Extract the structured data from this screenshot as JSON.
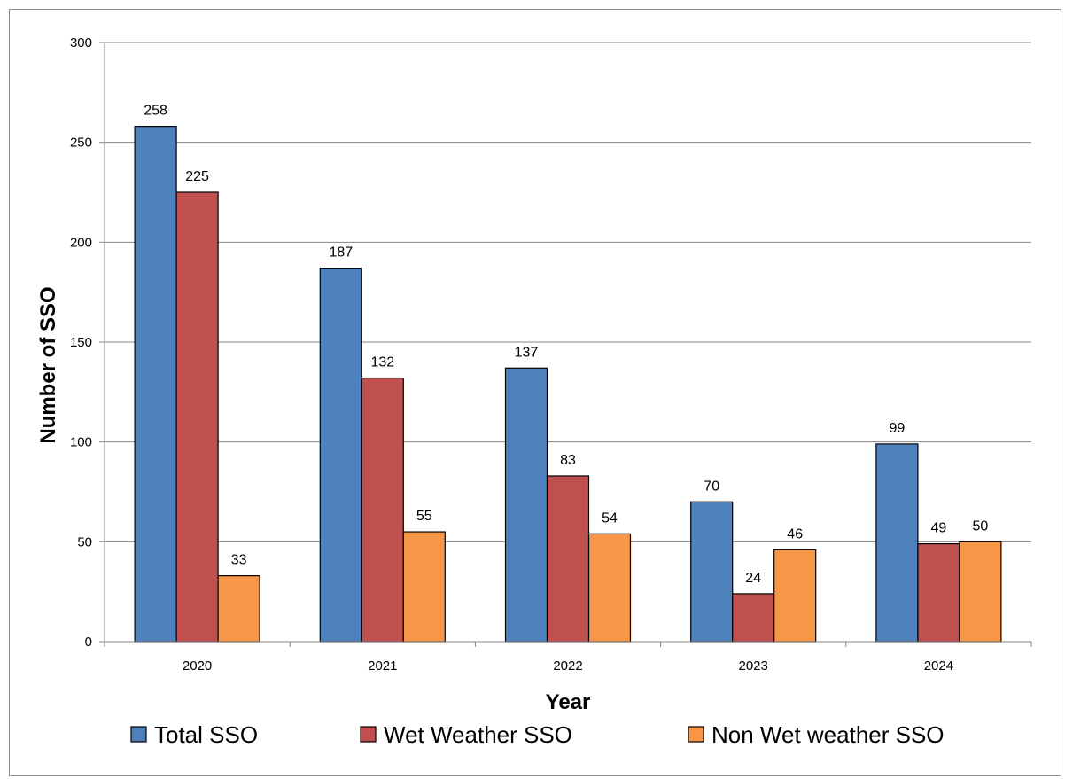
{
  "chart_data": {
    "type": "bar",
    "title": "",
    "xlabel": "Year",
    "ylabel": "Number of SSO",
    "categories": [
      "2020",
      "2021",
      "2022",
      "2023",
      "2024"
    ],
    "series": [
      {
        "name": "Total SSO",
        "color": "#4F81BD",
        "values": [
          258,
          187,
          137,
          70,
          99
        ]
      },
      {
        "name": "Wet Weather SSO",
        "color": "#C0504D",
        "values": [
          225,
          132,
          83,
          24,
          49
        ]
      },
      {
        "name": "Non Wet weather SSO",
        "color": "#F79646",
        "values": [
          33,
          55,
          54,
          46,
          50
        ]
      }
    ],
    "ylim": [
      0,
      300
    ],
    "yticks": [
      0,
      50,
      100,
      150,
      200,
      250,
      300
    ],
    "grid": true,
    "legend_position": "bottom"
  }
}
